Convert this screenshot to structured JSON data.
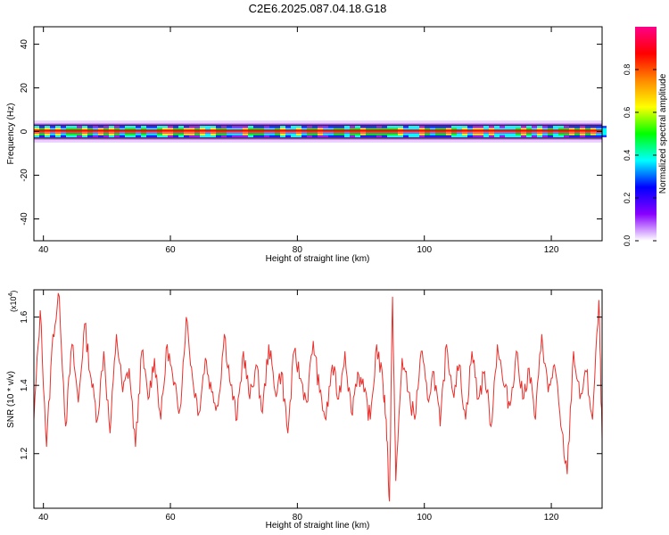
{
  "title": "C2E6.2025.087.04.18.G18",
  "colors": {
    "snr_line": "#e8302c",
    "axis": "#000000"
  },
  "chart_data": [
    {
      "type": "heatmap",
      "title": "C2E6.2025.087.04.18.G18",
      "xlabel": "Height of straight line (km)",
      "ylabel": "Frequency (Hz)",
      "xlim": [
        38.5,
        128
      ],
      "ylim": [
        -50,
        48
      ],
      "xticks": [
        40,
        60,
        80,
        100,
        120
      ],
      "yticks": [
        40,
        20,
        0,
        -20,
        -40
      ],
      "ytick_labels": [
        "40",
        "20",
        "0",
        "-20",
        "-40"
      ],
      "band_center_hz": 0,
      "band_halfwidth_hz": 3,
      "colorbar": {
        "label": "Normalized spectral amplitude",
        "range": [
          0.0,
          1.0
        ],
        "ticks": [
          0.0,
          0.2,
          0.4,
          0.6,
          0.8
        ],
        "tick_labels": [
          "0.0",
          "0.2",
          "0.4",
          "0.6",
          "0.8"
        ],
        "colors": [
          "#ffffff",
          "#8800ff",
          "#0000ff",
          "#00ffff",
          "#00ff00",
          "#ffff00",
          "#ff8800",
          "#ff0000",
          "#ff0088"
        ]
      }
    },
    {
      "type": "line",
      "xlabel": "Height of straight line (km)",
      "ylabel": "SNR (10 * v/v)",
      "scale_label": "(x10",
      "scale_exp": "4",
      "scale_close": ")",
      "xlim": [
        38.5,
        128
      ],
      "ylim": [
        1.04,
        1.68
      ],
      "xticks": [
        40,
        60,
        80,
        100,
        120
      ],
      "yticks": [
        1.2,
        1.4,
        1.6
      ],
      "ytick_labels": [
        "1.2",
        "1.4",
        "1.6"
      ],
      "series": [
        {
          "x": [
            38.5,
            39.5,
            40.5,
            41.5,
            42.5,
            43.5,
            44.5,
            45.5,
            46.5,
            47.5,
            48.5,
            49.5,
            50.5,
            51.5,
            52.5,
            53.5,
            54.5,
            55.5,
            56.5,
            57.5,
            58.5,
            59.5,
            60.5,
            61.5,
            62.5,
            63.5,
            64.5,
            65.5,
            66.5,
            67.5,
            68.5,
            69.5,
            70.5,
            71.5,
            72.5,
            73.5,
            74.5,
            75.5,
            76.5,
            77.5,
            78.5,
            79.5,
            80.5,
            81.5,
            82.5,
            83.5,
            84.5,
            85.5,
            86.5,
            87.5,
            88.5,
            89.5,
            90.5,
            91.5,
            92.5,
            93.5,
            94.0,
            94.5,
            95.0,
            95.5,
            96.5,
            97.5,
            98.5,
            99.5,
            100.5,
            101.5,
            102.5,
            103.5,
            104.5,
            105.5,
            106.5,
            107.5,
            108.5,
            109.5,
            110.5,
            111.5,
            112.5,
            113.5,
            114.5,
            115.5,
            116.5,
            117.5,
            118.5,
            119.5,
            120.5,
            121.5,
            122.5,
            123.5,
            124.5,
            125.5,
            126.5,
            127.5,
            128.0
          ],
          "y": [
            1.3,
            1.62,
            1.22,
            1.55,
            1.66,
            1.28,
            1.52,
            1.35,
            1.58,
            1.42,
            1.3,
            1.5,
            1.26,
            1.55,
            1.38,
            1.45,
            1.22,
            1.5,
            1.36,
            1.48,
            1.3,
            1.52,
            1.4,
            1.33,
            1.6,
            1.42,
            1.32,
            1.48,
            1.38,
            1.34,
            1.55,
            1.4,
            1.3,
            1.5,
            1.36,
            1.46,
            1.32,
            1.52,
            1.38,
            1.44,
            1.26,
            1.5,
            1.42,
            1.35,
            1.53,
            1.38,
            1.3,
            1.46,
            1.36,
            1.5,
            1.32,
            1.44,
            1.38,
            1.3,
            1.52,
            1.4,
            1.3,
            1.06,
            1.66,
            1.12,
            1.48,
            1.38,
            1.3,
            1.5,
            1.36,
            1.44,
            1.28,
            1.52,
            1.38,
            1.46,
            1.3,
            1.5,
            1.36,
            1.44,
            1.28,
            1.52,
            1.4,
            1.34,
            1.5,
            1.36,
            1.45,
            1.3,
            1.55,
            1.38,
            1.46,
            1.28,
            1.14,
            1.5,
            1.36,
            1.44,
            1.3,
            1.65,
            1.24
          ]
        }
      ]
    }
  ]
}
